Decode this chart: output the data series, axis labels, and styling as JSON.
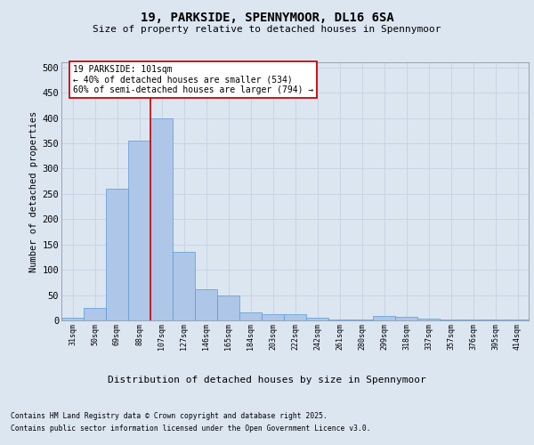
{
  "title1": "19, PARKSIDE, SPENNYMOOR, DL16 6SA",
  "title2": "Size of property relative to detached houses in Spennymoor",
  "xlabel": "Distribution of detached houses by size in Spennymoor",
  "ylabel": "Number of detached properties",
  "categories": [
    "31sqm",
    "50sqm",
    "69sqm",
    "88sqm",
    "107sqm",
    "127sqm",
    "146sqm",
    "165sqm",
    "184sqm",
    "203sqm",
    "222sqm",
    "242sqm",
    "261sqm",
    "280sqm",
    "299sqm",
    "318sqm",
    "337sqm",
    "357sqm",
    "376sqm",
    "395sqm",
    "414sqm"
  ],
  "values": [
    5,
    25,
    260,
    355,
    400,
    135,
    62,
    50,
    16,
    13,
    12,
    5,
    2,
    1,
    8,
    7,
    3,
    1,
    1,
    1,
    2
  ],
  "bar_color": "#aec6e8",
  "bar_edge_color": "#5b9bd5",
  "grid_color": "#c8d4e4",
  "background_color": "#dce6f1",
  "vline_color": "#cc0000",
  "vline_x": 3.5,
  "annotation_text": "19 PARKSIDE: 101sqm\n← 40% of detached houses are smaller (534)\n60% of semi-detached houses are larger (794) →",
  "annotation_box_color": "#ffffff",
  "annotation_box_edge": "#cc0000",
  "ylim": [
    0,
    510
  ],
  "yticks": [
    0,
    50,
    100,
    150,
    200,
    250,
    300,
    350,
    400,
    450,
    500
  ],
  "footer_line1": "Contains HM Land Registry data © Crown copyright and database right 2025.",
  "footer_line2": "Contains public sector information licensed under the Open Government Licence v3.0."
}
